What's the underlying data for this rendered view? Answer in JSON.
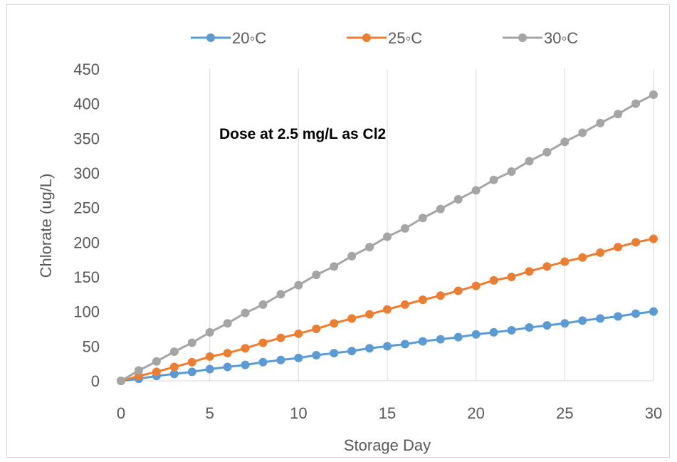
{
  "chart_data": {
    "type": "line",
    "title": "",
    "xlabel": "Storage Day",
    "ylabel": "Chlorate  (ug/L)",
    "xlim": [
      0,
      30
    ],
    "ylim": [
      0,
      450
    ],
    "xticks": [
      0,
      5,
      10,
      15,
      20,
      25,
      30
    ],
    "yticks": [
      0,
      50,
      100,
      150,
      200,
      250,
      300,
      350,
      400,
      450
    ],
    "grid": "vertical",
    "legend_position": "top",
    "annotation": "Dose at 2.5 mg/L as Cl2",
    "x": [
      0,
      1,
      2,
      3,
      4,
      5,
      6,
      7,
      8,
      9,
      10,
      11,
      12,
      13,
      14,
      15,
      16,
      17,
      18,
      19,
      20,
      21,
      22,
      23,
      24,
      25,
      26,
      27,
      28,
      29,
      30
    ],
    "series": [
      {
        "name": "20◦C",
        "color": "#5b9bd5",
        "values": [
          0,
          3,
          7,
          10,
          13,
          17,
          20,
          23,
          27,
          30,
          33,
          37,
          40,
          43,
          47,
          50,
          53,
          57,
          60,
          63,
          67,
          70,
          73,
          77,
          80,
          83,
          87,
          90,
          93,
          97,
          100
        ]
      },
      {
        "name": "25◦C",
        "color": "#ed7d31",
        "values": [
          0,
          7,
          13,
          20,
          27,
          35,
          40,
          47,
          55,
          62,
          68,
          75,
          83,
          90,
          96,
          103,
          110,
          117,
          123,
          130,
          137,
          145,
          150,
          158,
          165,
          172,
          178,
          185,
          193,
          200,
          205
        ]
      },
      {
        "name": "30◦C",
        "color": "#a5a5a5",
        "values": [
          0,
          15,
          28,
          42,
          55,
          70,
          83,
          98,
          110,
          125,
          138,
          153,
          165,
          180,
          193,
          208,
          220,
          235,
          248,
          262,
          275,
          290,
          302,
          317,
          330,
          345,
          358,
          372,
          385,
          400,
          413
        ]
      }
    ]
  }
}
